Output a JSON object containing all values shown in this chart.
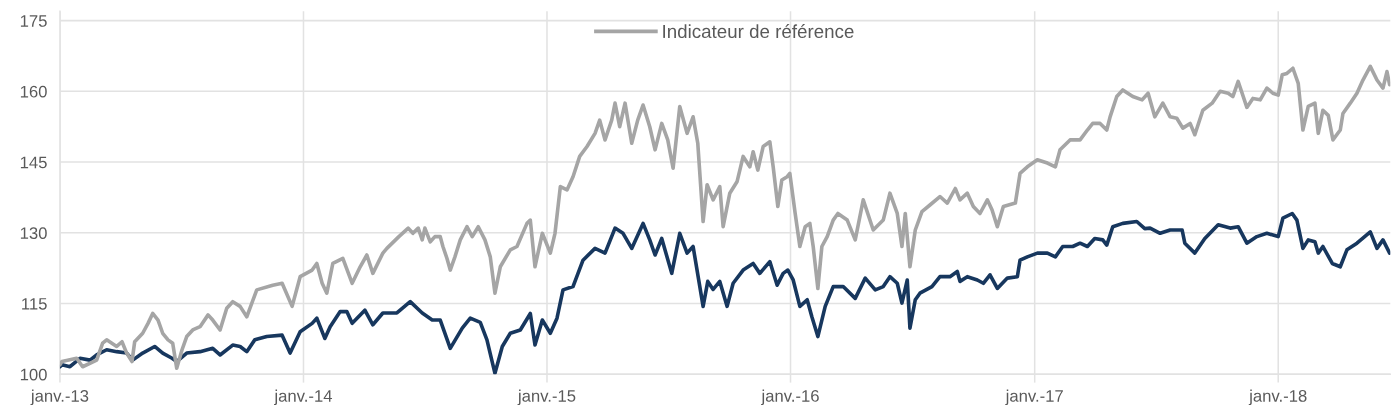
{
  "chart_data": {
    "type": "line",
    "xlim": [
      "2013-01-01",
      "2018-06-18"
    ],
    "xticks": [
      {
        "value": "2013-01-01",
        "label": "janv.-13"
      },
      {
        "value": "2014-01-01",
        "label": "janv.-14"
      },
      {
        "value": "2015-01-01",
        "label": "janv.-15"
      },
      {
        "value": "2016-01-01",
        "label": "janv.-16"
      },
      {
        "value": "2017-01-01",
        "label": "janv.-17"
      },
      {
        "value": "2018-01-01",
        "label": "janv.-18"
      }
    ],
    "ylim": [
      100,
      177
    ],
    "yticks": [
      100,
      115,
      130,
      145,
      160,
      175
    ],
    "grid": true,
    "legend": "top",
    "series": [
      {
        "color": "#17375e",
        "x": [
          "2013-01-01",
          "2013-01-04",
          "2013-01-16",
          "2013-01-31",
          "2013-02-15",
          "2013-02-25",
          "2013-03-12",
          "2013-03-27",
          "2013-04-11",
          "2013-04-20",
          "2013-05-05",
          "2013-05-23",
          "2013-06-04",
          "2013-06-18",
          "2013-06-25",
          "2013-07-10",
          "2013-07-30",
          "2013-08-18",
          "2013-08-29",
          "2013-09-17",
          "2013-09-28",
          "2013-10-08",
          "2013-10-20",
          "2013-11-07",
          "2013-11-30",
          "2013-12-12",
          "2013-12-27",
          "2014-01-14",
          "2014-01-21",
          "2014-02-02",
          "2014-02-10",
          "2014-02-25",
          "2014-03-07",
          "2014-03-15",
          "2014-04-03",
          "2014-04-15",
          "2014-04-30",
          "2014-05-21",
          "2014-06-10",
          "2014-06-28",
          "2014-07-13",
          "2014-07-25",
          "2014-08-09",
          "2014-08-27",
          "2014-09-08",
          "2014-09-23",
          "2014-10-03",
          "2014-10-15",
          "2014-10-26",
          "2014-11-07",
          "2014-11-22",
          "2014-12-07",
          "2014-12-14",
          "2014-12-25",
          "2015-01-06",
          "2015-01-16",
          "2015-01-25",
          "2015-02-09",
          "2015-02-24",
          "2015-03-14",
          "2015-03-29",
          "2015-04-13",
          "2015-04-25",
          "2015-05-08",
          "2015-05-25",
          "2015-06-04",
          "2015-06-12",
          "2015-06-22",
          "2015-07-07",
          "2015-07-19",
          "2015-07-30",
          "2015-08-08",
          "2015-08-23",
          "2015-08-30",
          "2015-09-07",
          "2015-09-17",
          "2015-09-28",
          "2015-10-07",
          "2015-10-22",
          "2015-11-06",
          "2015-11-16",
          "2015-12-01",
          "2015-12-12",
          "2015-12-21",
          "2015-12-28",
          "2016-01-05",
          "2016-01-15",
          "2016-01-26",
          "2016-02-02",
          "2016-02-11",
          "2016-02-22",
          "2016-03-05",
          "2016-03-20",
          "2016-04-07",
          "2016-04-22",
          "2016-05-07",
          "2016-05-19",
          "2016-05-29",
          "2016-06-09",
          "2016-06-16",
          "2016-06-24",
          "2016-06-28",
          "2016-07-06",
          "2016-07-13",
          "2016-07-31",
          "2016-08-12",
          "2016-08-27",
          "2016-09-07",
          "2016-09-11",
          "2016-09-22",
          "2016-10-07",
          "2016-10-16",
          "2016-10-26",
          "2016-11-06",
          "2016-11-21",
          "2016-12-06",
          "2016-12-10",
          "2016-12-21",
          "2017-01-05",
          "2017-01-20",
          "2017-02-01",
          "2017-02-12",
          "2017-02-27",
          "2017-03-10",
          "2017-03-21",
          "2017-04-01",
          "2017-04-13",
          "2017-04-19",
          "2017-04-28",
          "2017-05-13",
          "2017-06-03",
          "2017-06-15",
          "2017-06-23",
          "2017-07-08",
          "2017-07-23",
          "2017-08-10",
          "2017-08-14",
          "2017-08-29",
          "2017-09-13",
          "2017-10-03",
          "2017-10-21",
          "2017-11-02",
          "2017-11-15",
          "2017-11-30",
          "2017-12-15",
          "2018-01-01",
          "2018-01-08",
          "2018-01-22",
          "2018-01-29",
          "2018-02-07",
          "2018-02-15",
          "2018-02-25",
          "2018-03-02",
          "2018-03-09",
          "2018-03-23",
          "2018-04-04",
          "2018-04-14",
          "2018-04-29",
          "2018-05-19",
          "2018-05-29",
          "2018-06-07",
          "2018-06-17"
        ],
        "values": [
          101.6,
          102.0,
          101.6,
          103.4,
          103.0,
          104.1,
          105.2,
          104.8,
          104.5,
          103.0,
          104.5,
          105.9,
          104.5,
          103.4,
          102.7,
          104.5,
          104.8,
          105.5,
          104.1,
          106.2,
          105.9,
          104.8,
          107.3,
          108.0,
          108.3,
          104.5,
          109.0,
          110.8,
          111.9,
          107.6,
          110.1,
          113.3,
          113.3,
          110.8,
          113.6,
          110.5,
          113.0,
          113.0,
          115.4,
          113.0,
          111.5,
          111.5,
          105.5,
          109.8,
          111.9,
          111.0,
          107.3,
          100.2,
          105.9,
          108.7,
          109.4,
          112.9,
          106.2,
          111.5,
          108.7,
          111.9,
          117.9,
          118.6,
          124.2,
          126.7,
          125.7,
          131.0,
          129.9,
          126.7,
          132.0,
          128.5,
          125.3,
          128.8,
          121.4,
          129.9,
          125.7,
          127.1,
          114.4,
          119.7,
          118.0,
          119.7,
          114.4,
          119.3,
          122.1,
          123.5,
          121.4,
          123.9,
          118.9,
          121.4,
          122.1,
          120.0,
          114.4,
          115.8,
          112.2,
          108.0,
          114.4,
          118.6,
          118.6,
          116.1,
          120.4,
          117.9,
          118.6,
          120.7,
          119.3,
          115.1,
          120.0,
          109.8,
          115.8,
          117.2,
          118.6,
          120.7,
          120.7,
          121.8,
          119.7,
          120.7,
          120.0,
          119.3,
          121.1,
          118.2,
          120.4,
          120.7,
          124.2,
          124.9,
          125.7,
          125.7,
          124.9,
          127.1,
          127.1,
          127.8,
          127.1,
          128.8,
          128.5,
          127.4,
          131.3,
          132.0,
          132.4,
          130.9,
          131.0,
          129.9,
          130.6,
          130.6,
          127.8,
          125.7,
          128.8,
          131.7,
          131.0,
          131.3,
          127.8,
          129.2,
          129.9,
          129.2,
          133.1,
          134.1,
          132.7,
          126.7,
          128.5,
          128.1,
          125.7,
          127.1,
          123.5,
          122.8,
          126.4,
          127.8,
          130.2,
          126.7,
          128.5,
          125.7
        ]
      },
      {
        "name": "Indicateur de référence",
        "color": "#a5a5a5",
        "x": [
          "2013-01-01",
          "2013-01-04",
          "2013-01-26",
          "2013-02-04",
          "2013-02-25",
          "2013-03-06",
          "2013-03-12",
          "2013-03-27",
          "2013-04-04",
          "2013-04-11",
          "2013-04-19",
          "2013-04-23",
          "2013-05-05",
          "2013-05-13",
          "2013-05-20",
          "2013-05-28",
          "2013-06-04",
          "2013-06-12",
          "2013-06-19",
          "2013-06-25",
          "2013-07-03",
          "2013-07-10",
          "2013-07-19",
          "2013-07-30",
          "2013-08-11",
          "2013-08-18",
          "2013-08-29",
          "2013-09-08",
          "2013-09-17",
          "2013-09-28",
          "2013-10-08",
          "2013-10-23",
          "2013-11-16",
          "2013-11-30",
          "2013-12-15",
          "2013-12-27",
          "2014-01-14",
          "2014-01-21",
          "2014-01-29",
          "2014-02-05",
          "2014-02-14",
          "2014-03-01",
          "2014-03-15",
          "2014-03-27",
          "2014-04-06",
          "2014-04-15",
          "2014-04-30",
          "2014-05-06",
          "2014-05-24",
          "2014-06-07",
          "2014-06-14",
          "2014-06-22",
          "2014-06-28",
          "2014-07-02",
          "2014-07-10",
          "2014-07-17",
          "2014-07-25",
          "2014-07-29",
          "2014-08-04",
          "2014-08-09",
          "2014-08-16",
          "2014-08-24",
          "2014-09-03",
          "2014-09-11",
          "2014-09-20",
          "2014-09-30",
          "2014-10-08",
          "2014-10-15",
          "2014-10-23",
          "2014-11-07",
          "2014-11-17",
          "2014-12-02",
          "2014-12-07",
          "2014-12-14",
          "2014-12-25",
          "2015-01-06",
          "2015-01-13",
          "2015-01-21",
          "2015-01-31",
          "2015-02-09",
          "2015-02-19",
          "2015-03-02",
          "2015-03-14",
          "2015-03-21",
          "2015-03-29",
          "2015-04-08",
          "2015-04-13",
          "2015-04-20",
          "2015-04-28",
          "2015-05-08",
          "2015-05-17",
          "2015-05-25",
          "2015-06-04",
          "2015-06-12",
          "2015-06-22",
          "2015-07-01",
          "2015-07-09",
          "2015-07-19",
          "2015-07-30",
          "2015-08-08",
          "2015-08-15",
          "2015-08-23",
          "2015-08-29",
          "2015-09-07",
          "2015-09-17",
          "2015-09-22",
          "2015-10-02",
          "2015-10-13",
          "2015-10-22",
          "2015-11-01",
          "2015-11-06",
          "2015-11-13",
          "2015-11-21",
          "2015-12-01",
          "2015-12-06",
          "2015-12-13",
          "2015-12-19",
          "2015-12-27",
          "2015-12-31",
          "2016-01-08",
          "2016-01-15",
          "2016-01-23",
          "2016-01-30",
          "2016-02-04",
          "2016-02-11",
          "2016-02-17",
          "2016-02-25",
          "2016-03-05",
          "2016-03-12",
          "2016-03-26",
          "2016-04-07",
          "2016-04-19",
          "2016-05-04",
          "2016-05-19",
          "2016-05-29",
          "2016-06-09",
          "2016-06-16",
          "2016-06-21",
          "2016-06-28",
          "2016-07-06",
          "2016-07-16",
          "2016-07-28",
          "2016-08-12",
          "2016-08-23",
          "2016-09-04",
          "2016-09-11",
          "2016-09-22",
          "2016-10-01",
          "2016-10-11",
          "2016-10-22",
          "2016-10-29",
          "2016-11-06",
          "2016-11-15",
          "2016-12-03",
          "2016-12-10",
          "2016-12-21",
          "2017-01-05",
          "2017-01-20",
          "2017-02-01",
          "2017-02-08",
          "2017-02-23",
          "2017-03-10",
          "2017-03-21",
          "2017-03-29",
          "2017-04-09",
          "2017-04-19",
          "2017-04-24",
          "2017-05-04",
          "2017-05-13",
          "2017-05-28",
          "2017-06-11",
          "2017-06-20",
          "2017-06-30",
          "2017-07-12",
          "2017-07-23",
          "2017-08-02",
          "2017-08-11",
          "2017-08-22",
          "2017-08-29",
          "2017-09-10",
          "2017-09-24",
          "2017-10-06",
          "2017-10-18",
          "2017-10-25",
          "2017-11-02",
          "2017-11-15",
          "2017-11-24",
          "2017-12-05",
          "2017-12-15",
          "2017-12-24",
          "2018-01-01",
          "2018-01-07",
          "2018-01-14",
          "2018-01-23",
          "2018-01-31",
          "2018-02-07",
          "2018-02-15",
          "2018-02-25",
          "2018-03-02",
          "2018-03-09",
          "2018-03-17",
          "2018-03-24",
          "2018-04-04",
          "2018-04-08",
          "2018-04-19",
          "2018-04-29",
          "2018-05-08",
          "2018-05-19",
          "2018-05-29",
          "2018-06-07",
          "2018-06-13",
          "2018-06-17"
        ],
        "values": [
          102.0,
          102.7,
          103.4,
          101.6,
          103.0,
          106.6,
          107.3,
          105.9,
          106.9,
          104.5,
          102.7,
          106.9,
          108.7,
          110.8,
          112.9,
          111.5,
          108.7,
          107.3,
          106.6,
          101.3,
          105.2,
          108.0,
          109.4,
          110.1,
          112.6,
          111.5,
          109.4,
          114.0,
          115.4,
          114.4,
          112.2,
          117.9,
          118.9,
          119.3,
          114.4,
          120.7,
          122.1,
          123.5,
          119.3,
          117.2,
          123.5,
          124.6,
          119.3,
          122.8,
          125.3,
          121.4,
          125.7,
          126.7,
          129.2,
          131.0,
          129.9,
          131.0,
          128.5,
          131.0,
          128.1,
          129.2,
          129.2,
          127.1,
          124.6,
          122.1,
          124.9,
          128.5,
          131.3,
          129.2,
          131.3,
          128.5,
          124.9,
          117.2,
          122.8,
          126.4,
          127.1,
          132.0,
          132.7,
          122.8,
          129.9,
          125.7,
          129.9,
          139.8,
          139.1,
          141.9,
          146.2,
          148.3,
          151.1,
          153.9,
          149.7,
          153.9,
          157.5,
          152.5,
          157.5,
          149.0,
          153.9,
          157.1,
          152.5,
          147.6,
          153.2,
          149.7,
          143.7,
          156.8,
          151.1,
          154.6,
          149.0,
          132.4,
          140.2,
          137.0,
          139.8,
          131.3,
          138.4,
          140.9,
          146.2,
          144.0,
          147.2,
          143.3,
          148.3,
          149.3,
          144.0,
          135.6,
          141.2,
          141.9,
          142.6,
          134.1,
          127.1,
          131.3,
          132.0,
          127.1,
          118.2,
          127.1,
          129.2,
          132.7,
          134.1,
          132.7,
          128.5,
          137.0,
          130.6,
          132.7,
          138.4,
          134.1,
          127.1,
          134.1,
          122.8,
          130.6,
          134.5,
          135.9,
          137.7,
          136.3,
          139.4,
          137.0,
          138.4,
          135.6,
          134.1,
          137.0,
          134.9,
          131.3,
          135.6,
          136.3,
          142.6,
          144.0,
          145.5,
          144.8,
          144.0,
          147.6,
          149.7,
          149.7,
          151.8,
          153.2,
          153.2,
          151.8,
          154.6,
          158.9,
          160.3,
          158.9,
          158.2,
          159.6,
          154.6,
          157.5,
          154.6,
          154.3,
          152.2,
          153.2,
          150.8,
          156.0,
          157.5,
          160.0,
          159.6,
          158.9,
          162.1,
          156.6,
          158.5,
          158.2,
          160.7,
          159.6,
          159.2,
          163.5,
          163.8,
          164.9,
          161.7,
          151.8,
          156.8,
          157.5,
          151.1,
          156.0,
          154.9,
          149.7,
          151.8,
          155.3,
          157.5,
          159.6,
          162.4,
          165.3,
          162.4,
          160.7,
          164.2,
          161.4
        ]
      }
    ]
  }
}
